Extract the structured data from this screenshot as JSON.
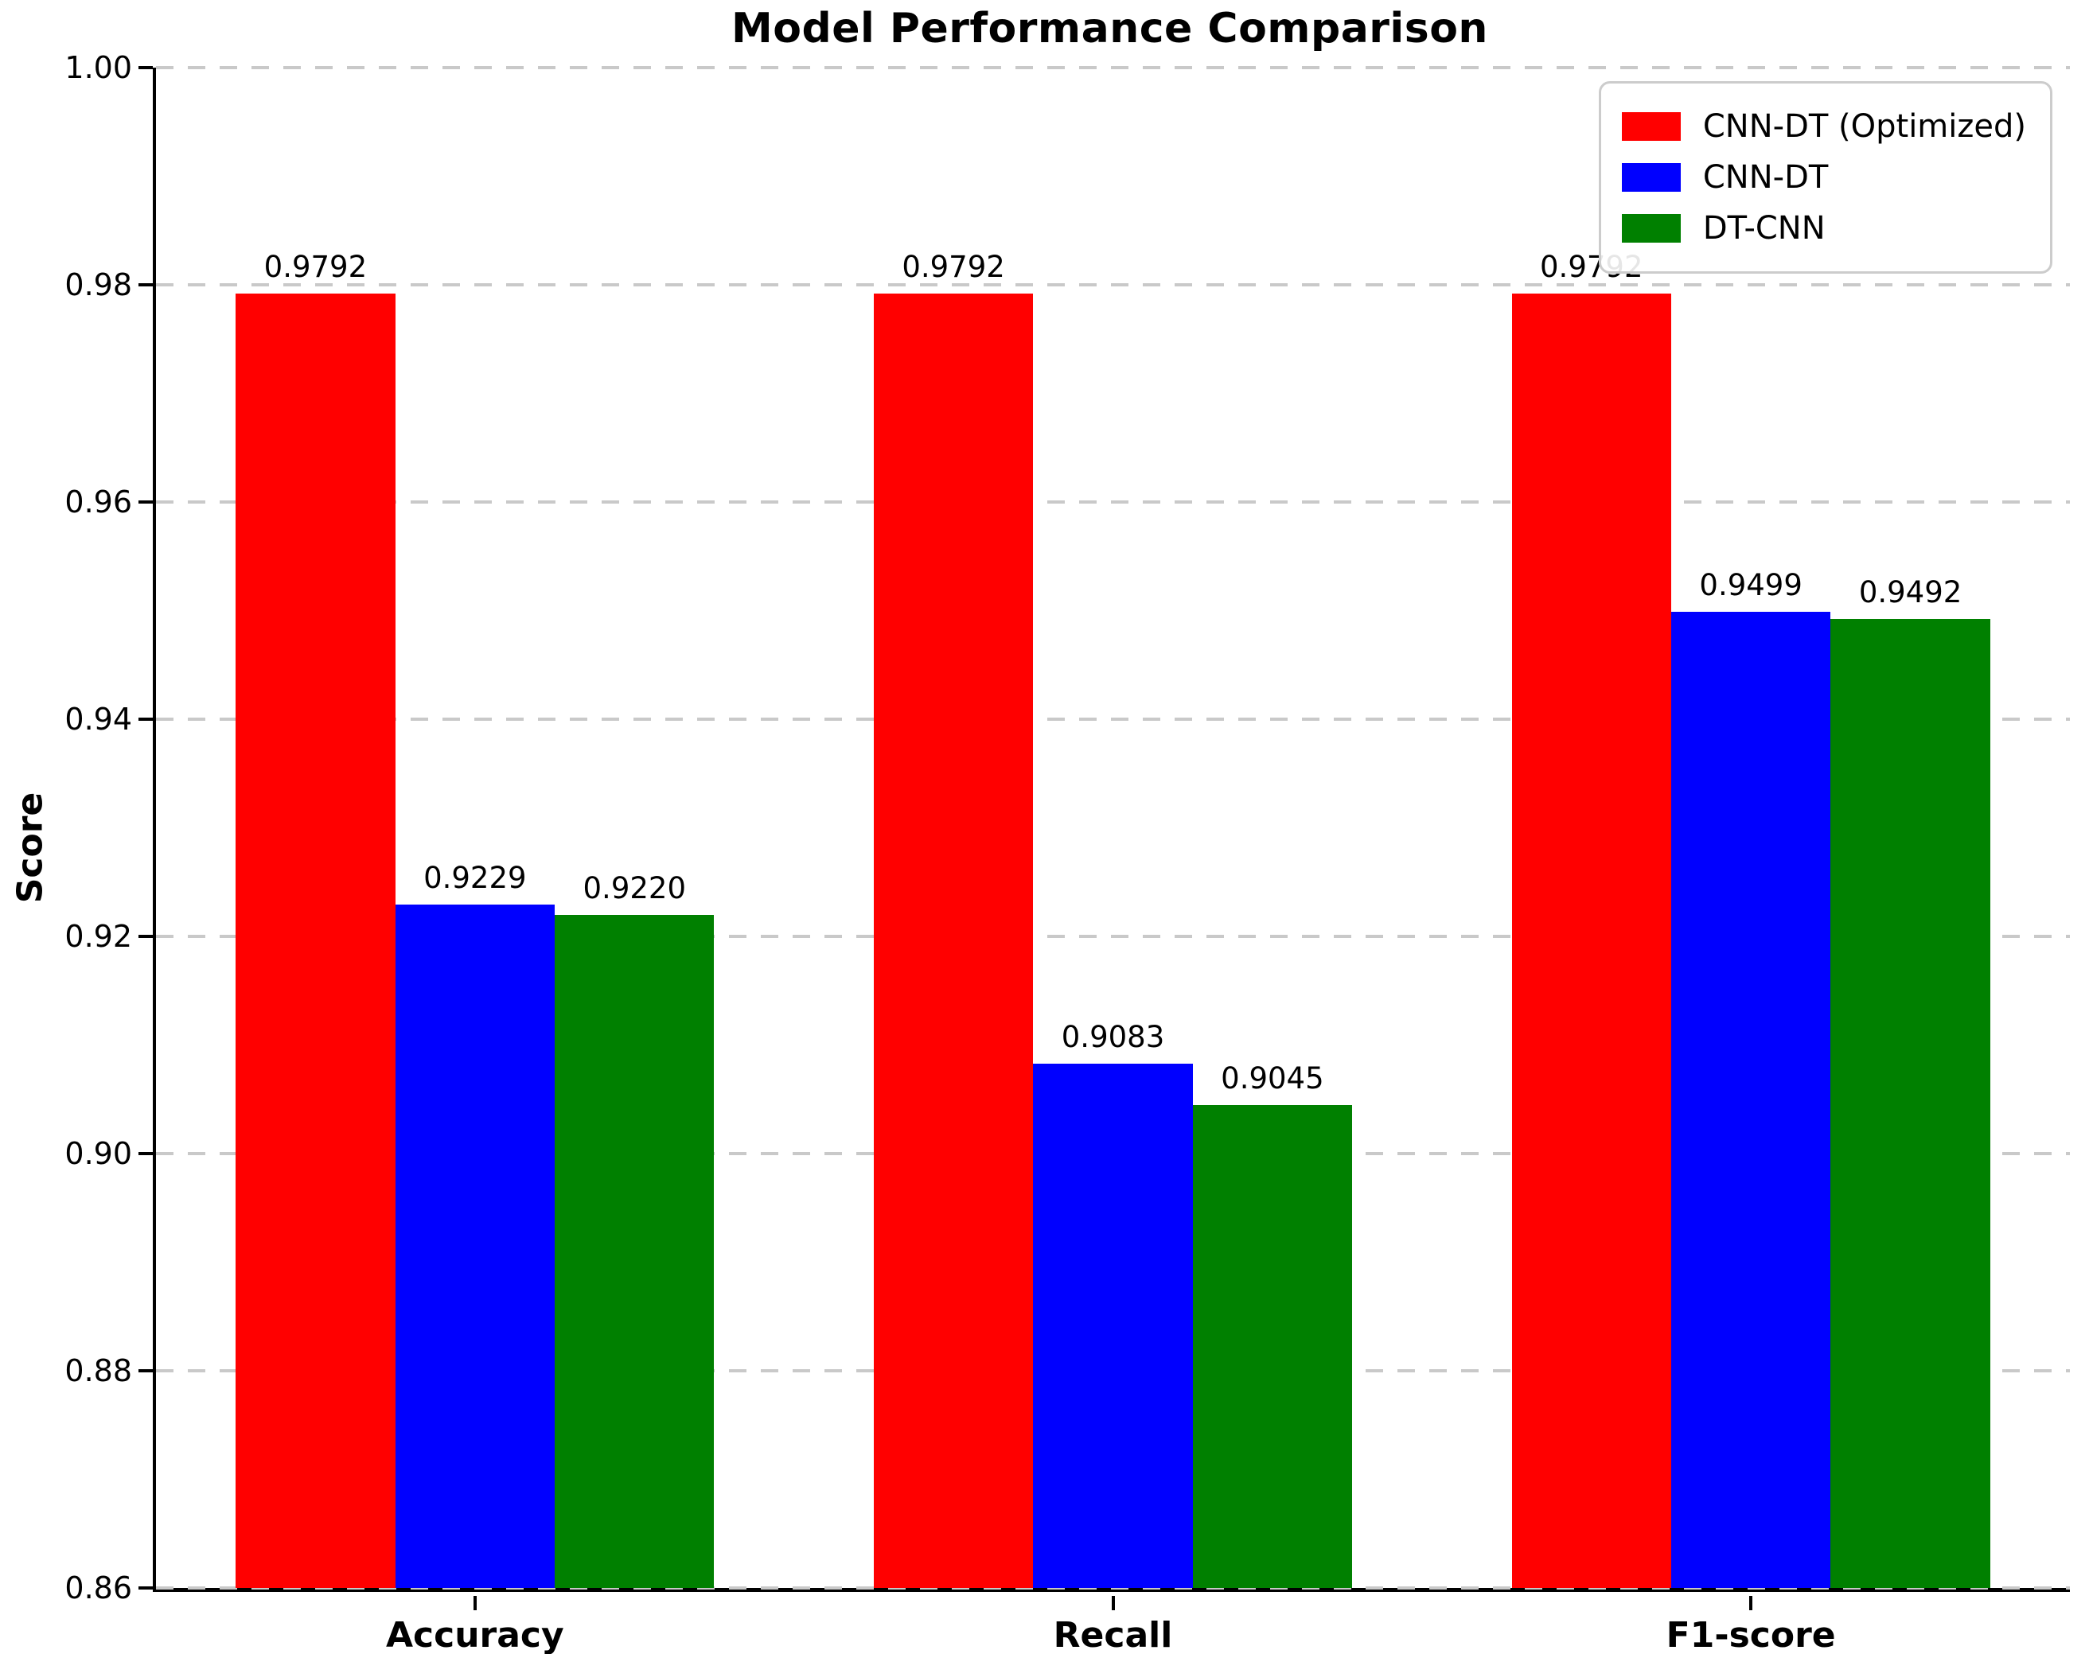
{
  "chart_data": {
    "type": "bar",
    "title": "Model Performance Comparison",
    "xlabel": "",
    "ylabel": "Score",
    "categories": [
      "Accuracy",
      "Recall",
      "F1-score"
    ],
    "series": [
      {
        "name": "CNN-DT (Optimized)",
        "color": "#ff0000",
        "values": [
          0.9792,
          0.9792,
          0.9792
        ],
        "value_labels": [
          "0.9792",
          "0.9792",
          "0.9792"
        ]
      },
      {
        "name": "CNN-DT",
        "color": "#0000ff",
        "values": [
          0.9229,
          0.9083,
          0.9499
        ],
        "value_labels": [
          "0.9229",
          "0.9083",
          "0.9499"
        ]
      },
      {
        "name": "DT-CNN",
        "color": "#008000",
        "values": [
          0.922,
          0.9045,
          0.9492
        ],
        "value_labels": [
          "0.9220",
          "0.9045",
          "0.9492"
        ]
      }
    ],
    "ylim": [
      0.86,
      1.0
    ],
    "yticks": [
      {
        "value": 1.0,
        "label": "1.00"
      },
      {
        "value": 0.98,
        "label": "0.98"
      },
      {
        "value": 0.96,
        "label": "0.96"
      },
      {
        "value": 0.94,
        "label": "0.94"
      },
      {
        "value": 0.92,
        "label": "0.92"
      },
      {
        "value": 0.9,
        "label": "0.90"
      },
      {
        "value": 0.88,
        "label": "0.88"
      },
      {
        "value": 0.86,
        "label": "0.86"
      }
    ],
    "grid": "horizontal dashed",
    "legend_position": "upper right",
    "bar_width_data_units": 0.25,
    "x_range_data_units": 3.0
  }
}
